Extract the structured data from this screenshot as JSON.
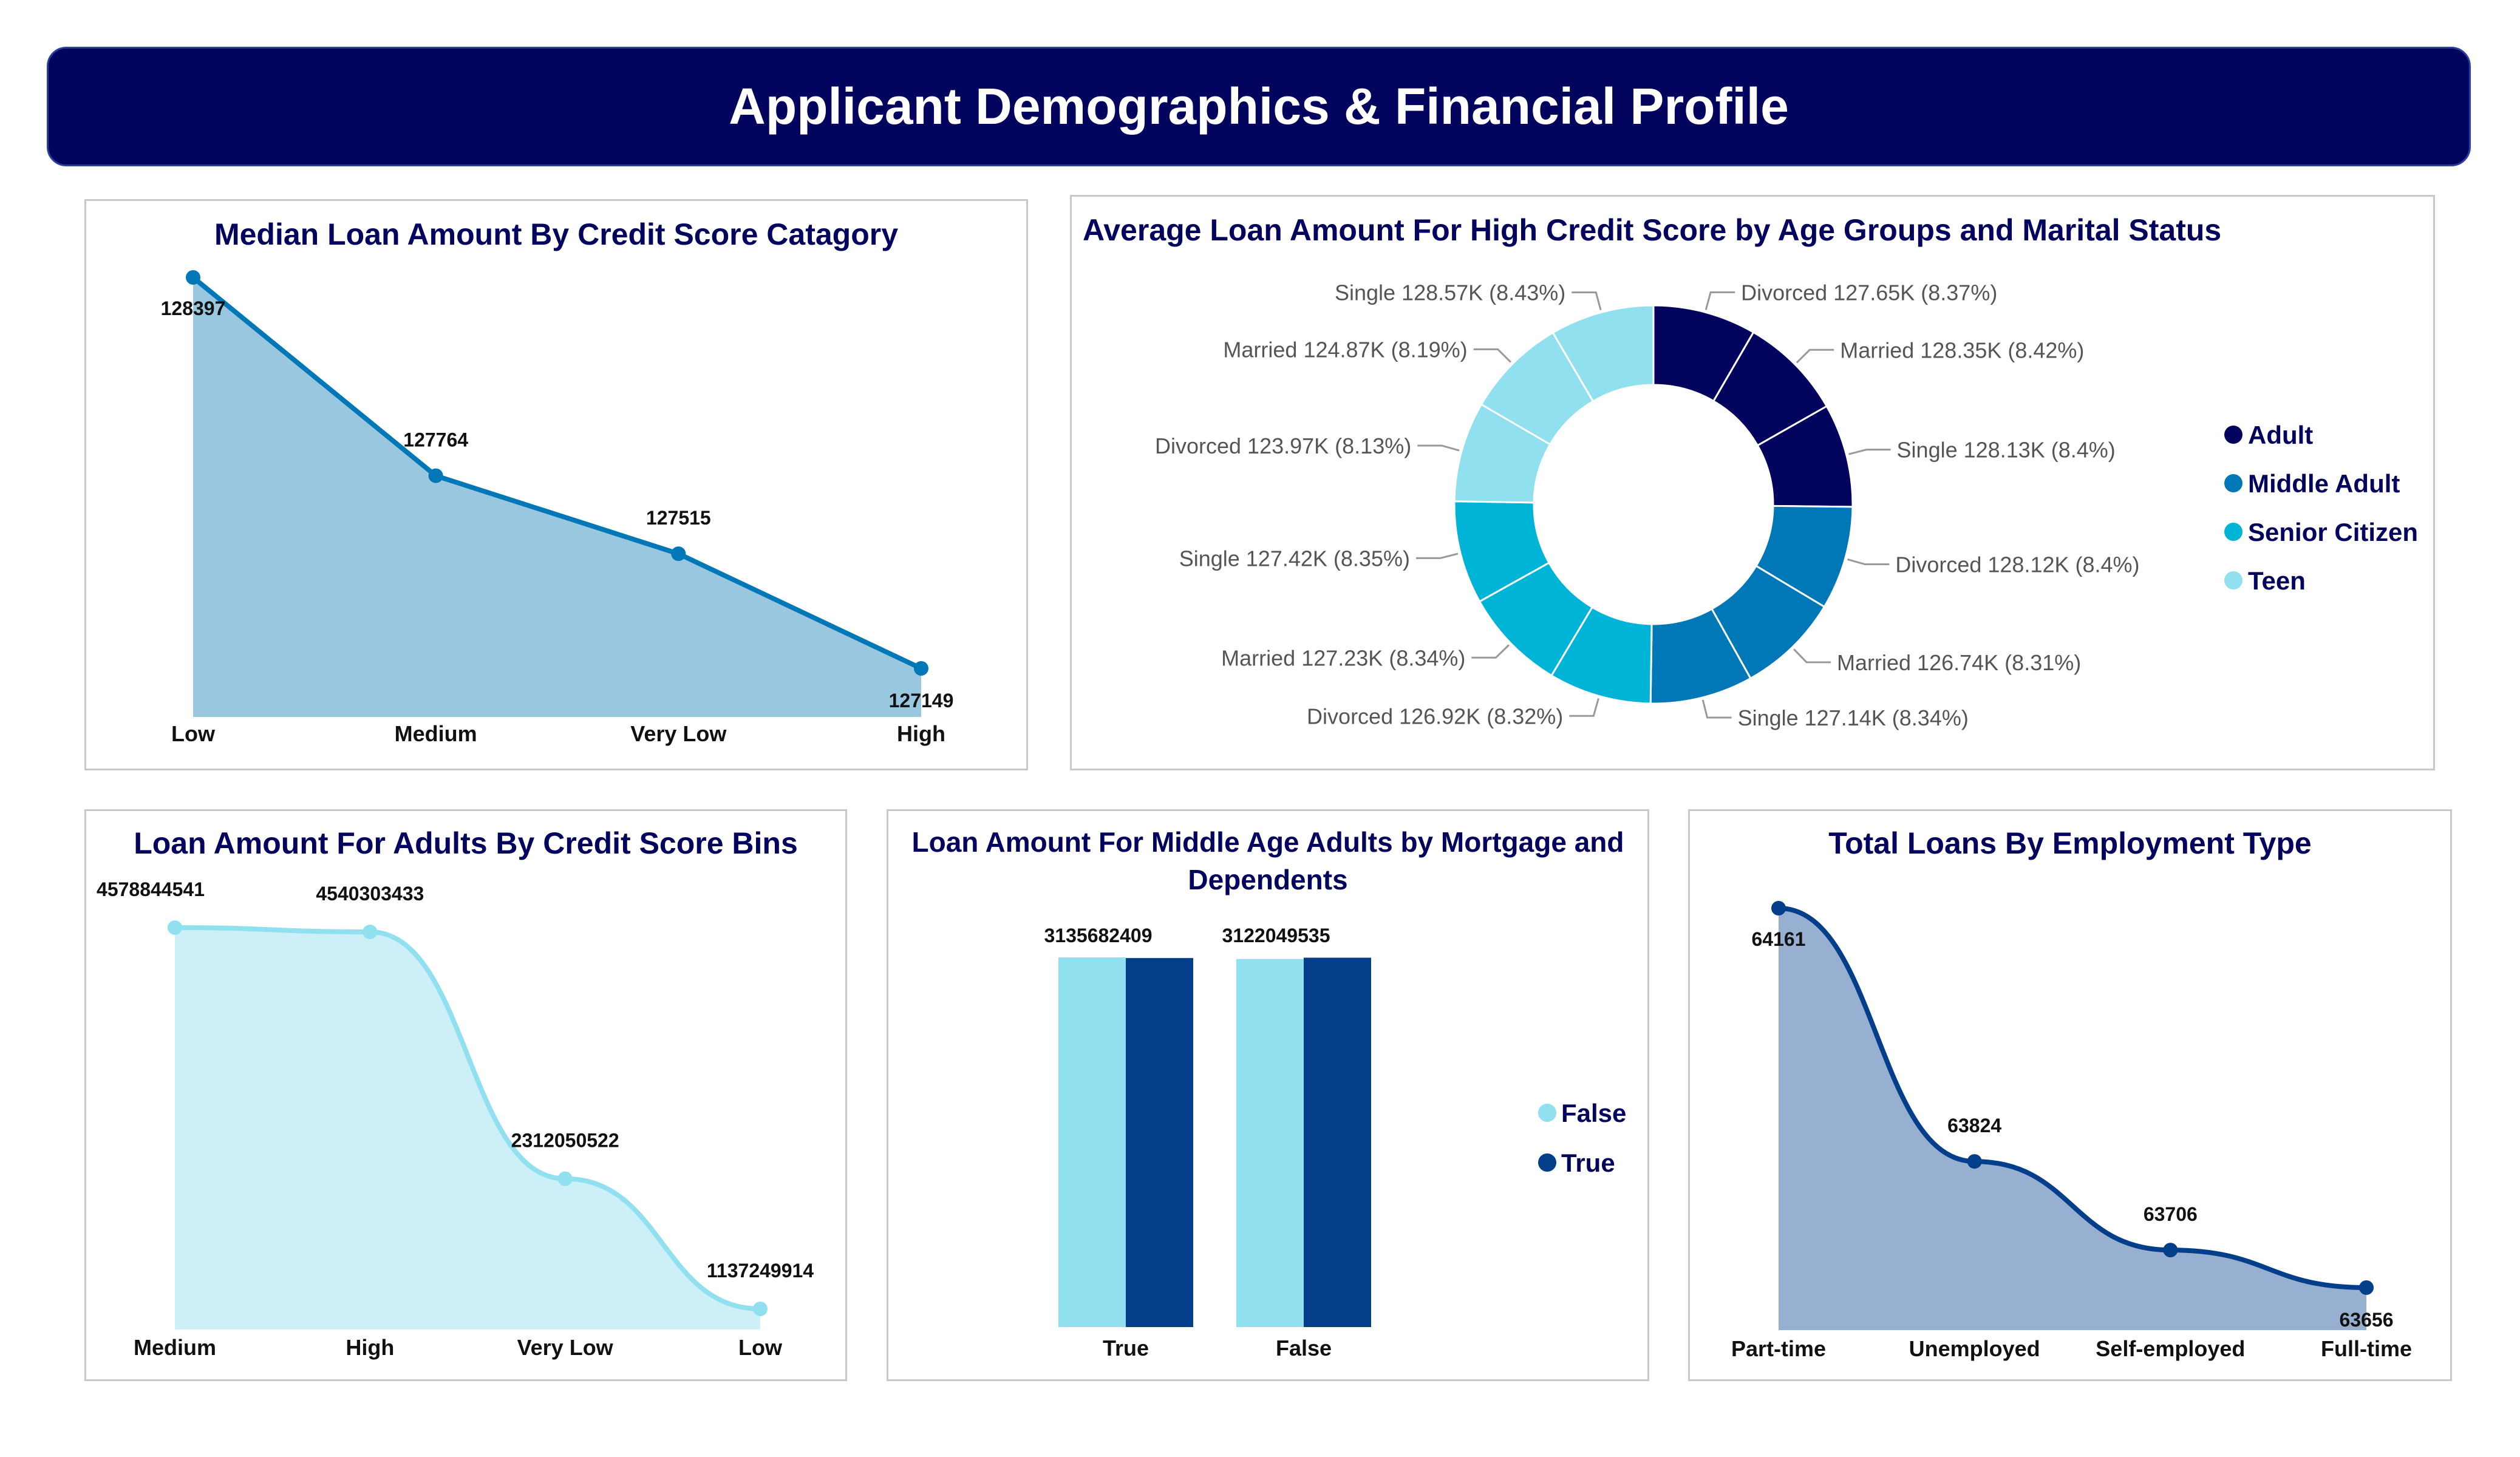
{
  "header": {
    "title": "Applicant Demographics & Financial Profile"
  },
  "colors": {
    "navy": "#03045e",
    "blue": "#0077b6",
    "cyan": "#00b4d8",
    "light": "#90e0ef",
    "area1": "#99c7e0",
    "area2": "#cdeff7",
    "area3": "#97afd0",
    "dark": "#023e8a"
  },
  "chart_data": [
    {
      "type": "area",
      "title": "Median Loan Amount By Credit Score Catagory",
      "categories": [
        "Low",
        "Medium",
        "Very Low",
        "High"
      ],
      "values": [
        128397,
        127764,
        127515,
        127149
      ],
      "labels": [
        "128397",
        "127764",
        "127515",
        "127149"
      ]
    },
    {
      "type": "pie",
      "title": "Average Loan Amount For High Credit Score by Age Groups and Marital Status",
      "legend": [
        "Adult",
        "Middle Adult",
        "Senior Citizen",
        "Teen"
      ],
      "slices": [
        {
          "group": "Adult",
          "name": "Divorced",
          "value": 127.65,
          "label": "Divorced 127.65K (8.37%)"
        },
        {
          "group": "Adult",
          "name": "Married",
          "value": 128.35,
          "label": "Married 128.35K (8.42%)"
        },
        {
          "group": "Adult",
          "name": "Single",
          "value": 128.13,
          "label": "Single 128.13K (8.4%)"
        },
        {
          "group": "Middle Adult",
          "name": "Divorced",
          "value": 128.12,
          "label": "Divorced 128.12K (8.4%)"
        },
        {
          "group": "Middle Adult",
          "name": "Married",
          "value": 126.74,
          "label": "Married 126.74K (8.31%)"
        },
        {
          "group": "Middle Adult",
          "name": "Single",
          "value": 127.14,
          "label": "Single 127.14K (8.34%)"
        },
        {
          "group": "Senior Citizen",
          "name": "Divorced",
          "value": 126.92,
          "label": "Divorced 126.92K (8.32%)"
        },
        {
          "group": "Senior Citizen",
          "name": "Married",
          "value": 127.23,
          "label": "Married 127.23K (8.34%)"
        },
        {
          "group": "Senior Citizen",
          "name": "Single",
          "value": 127.42,
          "label": "Single 127.42K (8.35%)"
        },
        {
          "group": "Teen",
          "name": "Divorced",
          "value": 123.97,
          "label": "Divorced 123.97K (8.13%)"
        },
        {
          "group": "Teen",
          "name": "Married",
          "value": 124.87,
          "label": "Married 124.87K (8.19%)"
        },
        {
          "group": "Teen",
          "name": "Single",
          "value": 128.57,
          "label": "Single 128.57K (8.43%)"
        }
      ]
    },
    {
      "type": "area",
      "title": "Loan Amount For Adults By Credit Score Bins",
      "categories": [
        "Medium",
        "High",
        "Very Low",
        "Low"
      ],
      "values": [
        4578844541,
        4540303433,
        2312050522,
        1137249914
      ],
      "labels": [
        "4578844541",
        "4540303433",
        "2312050522",
        "1137249914"
      ]
    },
    {
      "type": "bar",
      "title": "Loan Amount For Middle Age Adults by Mortgage and Dependents",
      "categories": [
        "True",
        "False"
      ],
      "legend": [
        "False",
        "True"
      ],
      "series": [
        {
          "name": "False",
          "values": [
            3135682409,
            3122049535
          ]
        },
        {
          "name": "True",
          "values": [
            3130000000,
            3133000000
          ]
        }
      ],
      "labels": [
        "3135682409",
        "3122049535"
      ]
    },
    {
      "type": "area",
      "title": "Total Loans By Employment Type",
      "categories": [
        "Part-time",
        "Unemployed",
        "Self-employed",
        "Full-time"
      ],
      "values": [
        64161,
        63824,
        63706,
        63656
      ],
      "labels": [
        "64161",
        "63824",
        "63706",
        "63656"
      ]
    }
  ]
}
